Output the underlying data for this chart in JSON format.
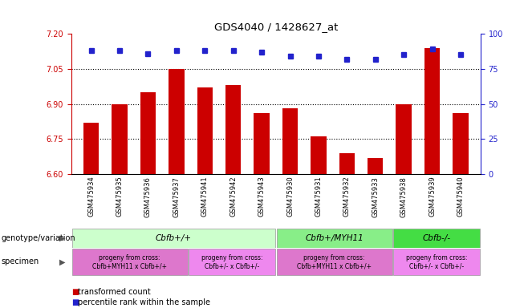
{
  "title": "GDS4040 / 1428627_at",
  "samples": [
    "GSM475934",
    "GSM475935",
    "GSM475936",
    "GSM475937",
    "GSM475941",
    "GSM475942",
    "GSM475943",
    "GSM475930",
    "GSM475931",
    "GSM475932",
    "GSM475933",
    "GSM475938",
    "GSM475939",
    "GSM475940"
  ],
  "bar_values": [
    6.82,
    6.9,
    6.95,
    7.05,
    6.97,
    6.98,
    6.86,
    6.88,
    6.76,
    6.69,
    6.67,
    6.9,
    7.14,
    6.86
  ],
  "dot_values": [
    88,
    88,
    86,
    88,
    88,
    88,
    87,
    84,
    84,
    82,
    82,
    85,
    89,
    85
  ],
  "bar_color": "#cc0000",
  "dot_color": "#2222cc",
  "ylim_left": [
    6.6,
    7.2
  ],
  "ylim_right": [
    0,
    100
  ],
  "yticks_left": [
    6.6,
    6.75,
    6.9,
    7.05,
    7.2
  ],
  "yticks_right": [
    0,
    25,
    50,
    75,
    100
  ],
  "hlines": [
    6.75,
    6.9,
    7.05
  ],
  "genotype_groups": [
    {
      "label": "Cbfb+/+",
      "start": 0,
      "end": 7,
      "color": "#ccffcc"
    },
    {
      "label": "Cbfb+/MYH11",
      "start": 7,
      "end": 11,
      "color": "#88ee88"
    },
    {
      "label": "Cbfb-/-",
      "start": 11,
      "end": 14,
      "color": "#44dd44"
    }
  ],
  "specimen_groups": [
    {
      "label": "progeny from cross:\nCbfb+MYH11 x Cbfb+/+",
      "start": 0,
      "end": 4,
      "color": "#dd77cc"
    },
    {
      "label": "progeny from cross:\nCbfb+/- x Cbfb+/-",
      "start": 4,
      "end": 7,
      "color": "#ee88ee"
    },
    {
      "label": "progeny from cross:\nCbfb+MYH11 x Cbfb+/+",
      "start": 7,
      "end": 11,
      "color": "#dd77cc"
    },
    {
      "label": "progeny from cross:\nCbfb+/- x Cbfb+/-",
      "start": 11,
      "end": 14,
      "color": "#ee88ee"
    }
  ],
  "left_axis_color": "#cc0000",
  "right_axis_color": "#2222cc",
  "bg_color": "#f0f0f0",
  "label_geno": "genotype/variation",
  "label_spec": "specimen",
  "legend_bar": "transformed count",
  "legend_dot": "percentile rank within the sample"
}
